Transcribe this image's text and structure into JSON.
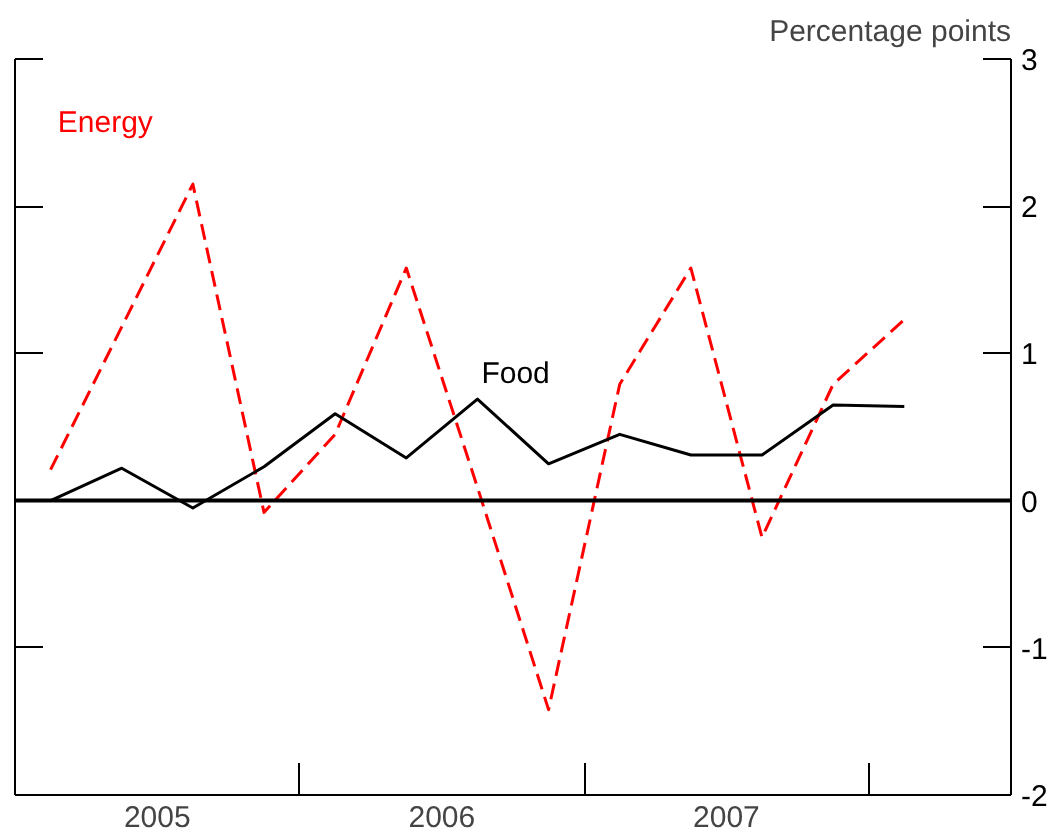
{
  "chart_data": {
    "type": "line",
    "ylabel": "Percentage points",
    "x": [
      2005.125,
      2005.375,
      2005.625,
      2005.875,
      2006.125,
      2006.375,
      2006.625,
      2006.875,
      2007.125,
      2007.375,
      2007.625,
      2007.875,
      2008.125
    ],
    "series": [
      {
        "name": "Energy",
        "color": "#ff0000",
        "line_style": "dashed",
        "values": [
          0.21,
          1.18,
          2.15,
          -0.08,
          0.45,
          1.58,
          0.09,
          -1.42,
          0.79,
          1.58,
          -0.25,
          0.79,
          1.23
        ]
      },
      {
        "name": "Food",
        "color": "#000000",
        "line_style": "solid",
        "values": [
          0.0,
          0.22,
          -0.05,
          0.23,
          0.59,
          0.29,
          0.69,
          0.25,
          0.45,
          0.31,
          0.31,
          0.65,
          0.64
        ]
      }
    ],
    "xlim": [
      2005,
      2008.5
    ],
    "xticks": [
      {
        "value": 2005.5,
        "label": "2005"
      },
      {
        "value": 2006,
        "label": null
      },
      {
        "value": 2006.5,
        "label": "2006"
      },
      {
        "value": 2007,
        "label": null
      },
      {
        "value": 2007.5,
        "label": "2007"
      },
      {
        "value": 2008,
        "label": null
      }
    ],
    "ylim": [
      -2,
      3
    ],
    "yticks": [
      -2,
      -1,
      0,
      1,
      2,
      3
    ],
    "ref_lines": [
      {
        "axis": "y",
        "value": 0,
        "color": "#000000"
      }
    ],
    "grid": false,
    "legend": false,
    "marker": "none"
  }
}
